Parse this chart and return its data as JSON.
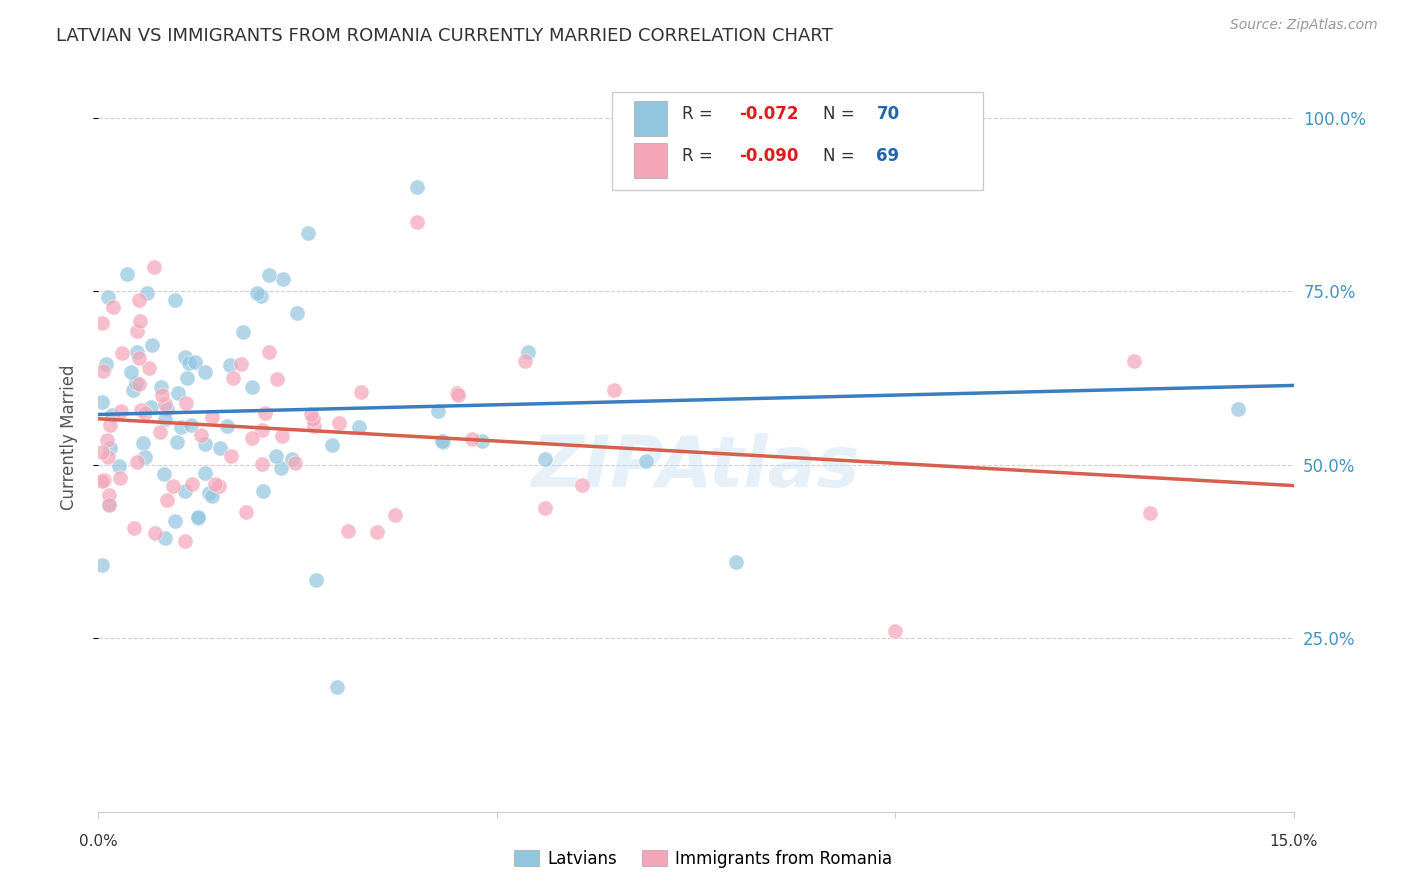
{
  "title": "LATVIAN VS IMMIGRANTS FROM ROMANIA CURRENTLY MARRIED CORRELATION CHART",
  "source": "Source: ZipAtlas.com",
  "ylabel": "Currently Married",
  "watermark": "ZIPAtlas",
  "legend_latvians_R": "-0.072",
  "legend_latvians_N": "70",
  "legend_romania_R": "-0.090",
  "legend_romania_N": "69",
  "blue_color": "#92c5de",
  "pink_color": "#f4a5b8",
  "blue_line_color": "#3a7ebf",
  "pink_line_color": "#d6604d",
  "title_color": "#333333",
  "right_axis_color": "#4393c3",
  "legend_R_color": "#e31a1c",
  "legend_N_color": "#2166ac",
  "background_color": "#ffffff",
  "xlim": [
    0,
    0.15
  ],
  "ylim": [
    0.0,
    1.08
  ],
  "yticks": [
    0.25,
    0.5,
    0.75,
    1.0
  ],
  "ytick_labels": [
    "25.0%",
    "50.0%",
    "75.0%",
    "100.0%"
  ]
}
